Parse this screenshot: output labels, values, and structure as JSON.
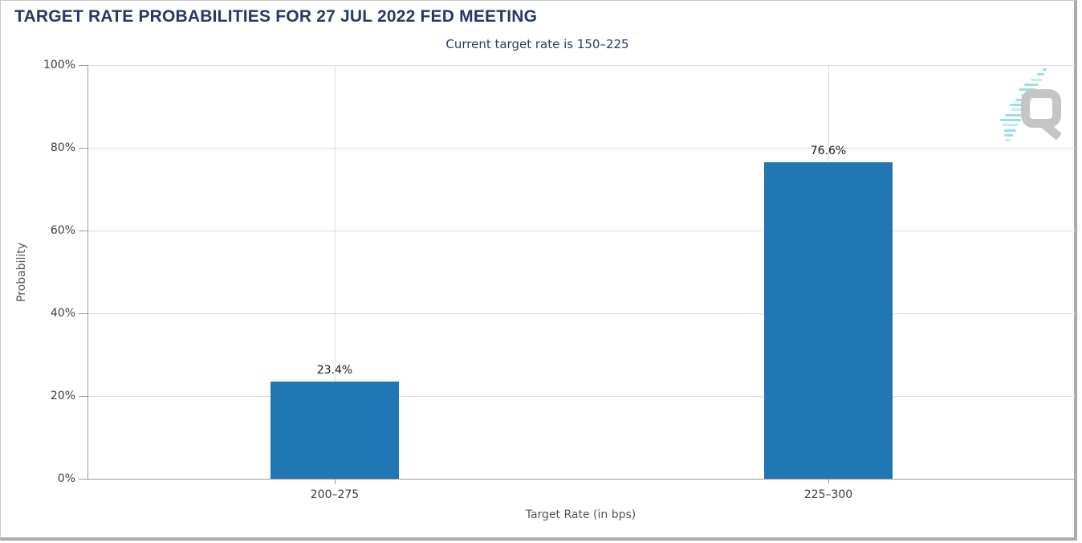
{
  "header": {
    "title": "TARGET RATE PROBABILITIES FOR 27 JUL 2022 FED MEETING",
    "subtitle": "Current target rate is 150–225"
  },
  "logo": {
    "letter": "Q"
  },
  "colors": {
    "title": "#263864",
    "subtitle": "#2a3a63",
    "bar": "#2077b4",
    "grid": "#dcdcdc",
    "axis": "#9c9c9c",
    "tick_label": "#3c3c3c",
    "axis_title": "#555555",
    "value_label": "#1a1a1a",
    "logo_letter": "#c5c5c5",
    "logo_dash": "#9adeed",
    "frame": "#aaacaf"
  },
  "chart_data": {
    "type": "bar",
    "title": "TARGET RATE PROBABILITIES FOR 27 JUL 2022 FED MEETING",
    "subtitle": "Current target rate is 150–225",
    "categories": [
      "200–275",
      "225–300"
    ],
    "values": [
      23.4,
      76.6
    ],
    "value_labels": [
      "23.4%",
      "76.6%"
    ],
    "xlabel": "Target Rate (in bps)",
    "ylabel": "Probability",
    "ylim": [
      0,
      100
    ],
    "yticks": [
      0,
      20,
      40,
      60,
      80,
      100
    ],
    "ytick_labels": [
      "0%",
      "20%",
      "40%",
      "60%",
      "80%",
      "100%"
    ],
    "bar_color": "#2077b4",
    "grid": true,
    "legend_position": "none"
  }
}
